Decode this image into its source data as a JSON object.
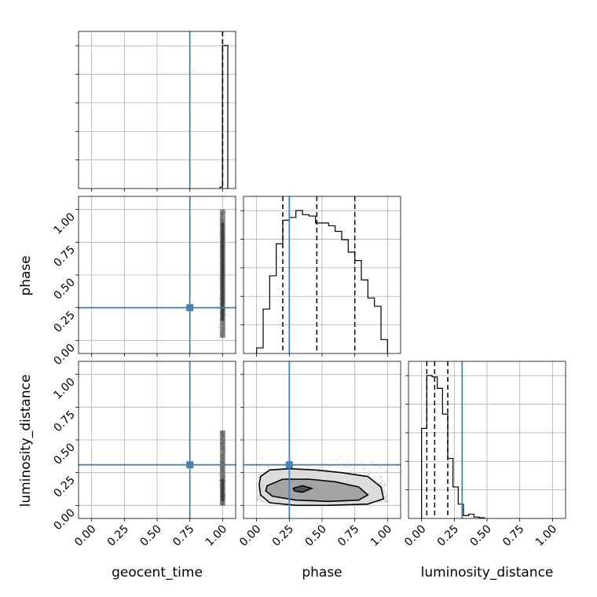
{
  "chart_data": {
    "type": "corner",
    "parameters": [
      "geocent_time",
      "phase",
      "luminosity_distance"
    ],
    "tick_labels": [
      "0.00",
      "0.25",
      "0.50",
      "0.75",
      "1.00"
    ],
    "range": [
      -0.1,
      1.1
    ],
    "truths": {
      "geocent_time": 0.75,
      "phase": 0.25,
      "luminosity_distance": 0.31
    },
    "colors": {
      "truth": "#4682b4",
      "hist": "#000000",
      "grid": "#b0b0b0"
    },
    "histograms": {
      "geocent_time": {
        "bin_edges": [
          0.98,
          1.0,
          1.04
        ],
        "counts": [
          0.01,
          1.0
        ],
        "quantiles": [
          1.0,
          1.0,
          1.0
        ]
      },
      "phase": {
        "bin_edges": [
          0.0,
          0.05,
          0.1,
          0.15,
          0.2,
          0.25,
          0.3,
          0.35,
          0.4,
          0.45,
          0.5,
          0.55,
          0.6,
          0.65,
          0.7,
          0.75,
          0.8,
          0.85,
          0.9,
          0.95,
          1.0
        ],
        "counts": [
          0.04,
          0.32,
          0.56,
          0.79,
          0.96,
          0.98,
          1.03,
          1.0,
          0.99,
          0.94,
          0.94,
          0.92,
          0.88,
          0.82,
          0.73,
          0.67,
          0.53,
          0.4,
          0.34,
          0.1
        ],
        "quantiles": [
          0.2,
          0.46,
          0.75
        ]
      },
      "luminosity_distance": {
        "bin_edges": [
          0.0,
          0.04,
          0.08,
          0.12,
          0.16,
          0.2,
          0.24,
          0.28,
          0.32,
          0.36,
          0.4,
          0.44,
          0.48
        ],
        "counts": [
          0.63,
          1.0,
          0.99,
          0.91,
          0.73,
          0.42,
          0.22,
          0.1,
          0.02,
          0.03,
          0.01,
          0.005
        ],
        "quantiles": [
          0.04,
          0.1,
          0.2
        ]
      }
    },
    "density_2d": {
      "phase_vs_geocent_time": {
        "x_center": 1.0,
        "x_spread": 0.012,
        "y_range": [
          0.02,
          1.0
        ],
        "y_core": [
          0.15,
          0.9
        ]
      },
      "luminosity_distance_vs_geocent_time": {
        "x_center": 1.0,
        "x_spread": 0.012,
        "y_range": [
          0.0,
          0.57
        ],
        "y_core": [
          0.03,
          0.2
        ]
      },
      "luminosity_distance_vs_phase": {
        "contours": [
          [
            [
              0.03,
              0.22
            ],
            [
              0.1,
              0.27
            ],
            [
              0.25,
              0.28
            ],
            [
              0.45,
              0.27
            ],
            [
              0.65,
              0.25
            ],
            [
              0.85,
              0.22
            ],
            [
              0.95,
              0.14
            ],
            [
              0.97,
              0.05
            ],
            [
              0.85,
              0.01
            ],
            [
              0.55,
              0.0
            ],
            [
              0.3,
              0.0
            ],
            [
              0.1,
              0.02
            ],
            [
              0.03,
              0.08
            ],
            [
              0.02,
              0.16
            ]
          ],
          [
            [
              0.08,
              0.15
            ],
            [
              0.2,
              0.2
            ],
            [
              0.4,
              0.2
            ],
            [
              0.6,
              0.18
            ],
            [
              0.78,
              0.14
            ],
            [
              0.85,
              0.08
            ],
            [
              0.78,
              0.04
            ],
            [
              0.55,
              0.03
            ],
            [
              0.3,
              0.04
            ],
            [
              0.12,
              0.07
            ],
            [
              0.07,
              0.11
            ]
          ],
          [
            [
              0.28,
              0.13
            ],
            [
              0.35,
              0.15
            ],
            [
              0.42,
              0.13
            ],
            [
              0.35,
              0.1
            ],
            [
              0.29,
              0.11
            ]
          ]
        ],
        "scatter_y_range": [
          0.0,
          0.45
        ]
      }
    }
  }
}
